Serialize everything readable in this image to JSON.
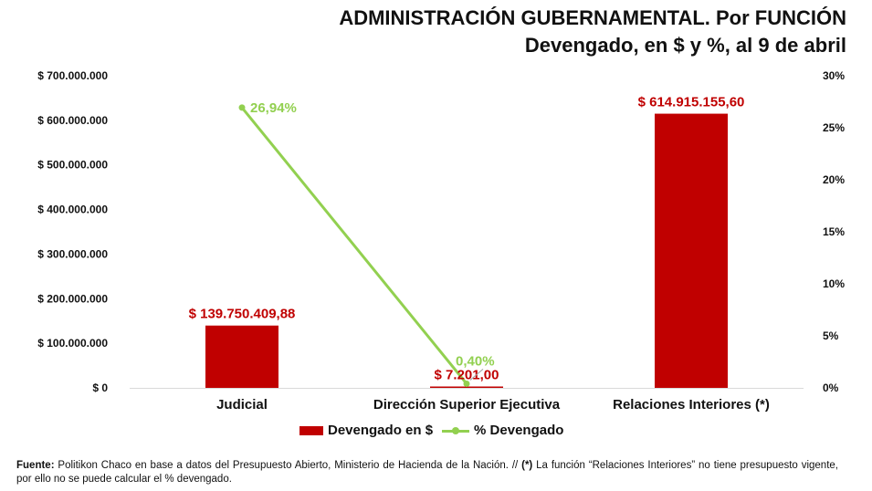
{
  "title_line1": "ADMINISTRACIÓN GUBERNAMENTAL. Por FUNCIÓN",
  "title_line2": "Devengado, en $ y %, al 9 de abril",
  "chart_data": {
    "type": "bar",
    "title": "ADMINISTRACIÓN GUBERNAMENTAL. Por FUNCIÓN",
    "subtitle": "Devengado, en $ y %, al 9 de abril",
    "categories": [
      "Judicial",
      "Dirección Superior Ejecutiva",
      "Relaciones Interiores (*)"
    ],
    "series": [
      {
        "name": "Devengado en $",
        "type": "bar",
        "axis": "left",
        "values": [
          139750409.88,
          7201.0,
          614915155.6
        ],
        "labels": [
          "$ 139.750.409,88",
          "$ 7.201,00",
          "$ 614.915.155,60"
        ]
      },
      {
        "name": "% Devengado",
        "type": "line",
        "axis": "right",
        "values": [
          26.94,
          0.4,
          null
        ],
        "labels": [
          "26,94%",
          "0,40%",
          ""
        ]
      }
    ],
    "y_left": {
      "ylim": [
        0,
        700000000
      ],
      "ticks": [
        0,
        100000000,
        200000000,
        300000000,
        400000000,
        500000000,
        600000000,
        700000000
      ],
      "tick_labels": [
        "$ 0",
        "$ 100.000.000",
        "$ 200.000.000",
        "$ 300.000.000",
        "$ 400.000.000",
        "$ 500.000.000",
        "$ 600.000.000",
        "$ 700.000.000"
      ]
    },
    "y_right": {
      "ylim": [
        0,
        30
      ],
      "ticks": [
        0,
        5,
        10,
        15,
        20,
        25,
        30
      ],
      "tick_labels": [
        "0%",
        "5%",
        "10%",
        "15%",
        "20%",
        "25%",
        "30%"
      ]
    },
    "grid": false,
    "legend_position": "bottom"
  },
  "colors": {
    "bar": "#c00000",
    "line": "#92d050",
    "bar_label": "#c00000",
    "line_label": "#92d050"
  },
  "legend": {
    "bar_label": "Devengado en $",
    "line_label": "% Devengado"
  },
  "footnote": {
    "source_label": "Fuente:",
    "source_text": " Politikon Chaco en base a datos del Presupuesto Abierto, Ministerio de Hacienda de la Nación. // ",
    "note_marker": "(*)",
    "note_text": " La función “Relaciones Interiores” no tiene presupuesto vigente,  por ello no se puede calcular el % devengado."
  }
}
